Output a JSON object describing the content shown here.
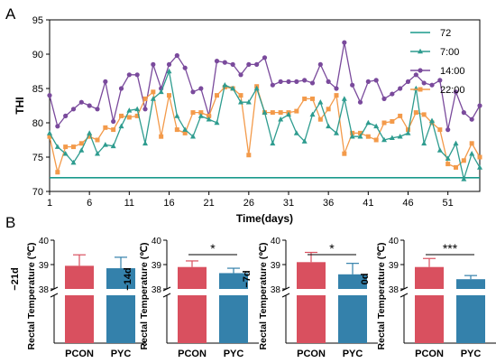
{
  "panel_labels": [
    "A",
    "B"
  ],
  "colors": {
    "line72": "#1a9a8c",
    "s7": "#2e9c8f",
    "s14": "#7a4a9c",
    "s22": "#f39a4a",
    "pcon": "#d9505f",
    "pyc": "#3481ab"
  },
  "chart_data": [
    {
      "type": "line",
      "xlabel": "Time(days)",
      "ylabel": "THI",
      "xlim": [
        1,
        55
      ],
      "ylim": [
        70,
        95
      ],
      "xticks": [
        1,
        6,
        11,
        16,
        21,
        26,
        31,
        36,
        41,
        46,
        51
      ],
      "yticks": [
        70,
        75,
        80,
        85,
        90,
        95
      ],
      "grid": false,
      "legend_position": "top-right",
      "x": [
        1,
        2,
        3,
        4,
        5,
        6,
        7,
        8,
        9,
        10,
        11,
        12,
        13,
        14,
        15,
        16,
        17,
        18,
        19,
        20,
        21,
        22,
        23,
        24,
        25,
        26,
        27,
        28,
        29,
        30,
        31,
        32,
        33,
        34,
        35,
        36,
        37,
        38,
        39,
        40,
        41,
        42,
        43,
        44,
        45,
        46,
        47,
        48,
        49,
        50,
        51,
        52,
        53,
        54,
        55
      ],
      "series": [
        {
          "name": "72",
          "marker": "none",
          "values": [
            72,
            72,
            72,
            72,
            72,
            72,
            72,
            72,
            72,
            72,
            72,
            72,
            72,
            72,
            72,
            72,
            72,
            72,
            72,
            72,
            72,
            72,
            72,
            72,
            72,
            72,
            72,
            72,
            72,
            72,
            72,
            72,
            72,
            72,
            72,
            72,
            72,
            72,
            72,
            72,
            72,
            72,
            72,
            72,
            72,
            72,
            72,
            72,
            72,
            72,
            72,
            72,
            72,
            72,
            72
          ]
        },
        {
          "name": "7:00",
          "marker": "triangle",
          "values": [
            78.5,
            76.5,
            75.5,
            74.2,
            76.0,
            78.5,
            75.5,
            76.8,
            76.6,
            79.5,
            81.8,
            82.0,
            77.0,
            83.5,
            84.5,
            87.5,
            81.0,
            79.0,
            78.0,
            81.0,
            80.5,
            80.0,
            85.5,
            85.0,
            83.0,
            83.0,
            85.0,
            81.5,
            77.0,
            80.5,
            81.2,
            78.5,
            77.3,
            81.2,
            83.0,
            79.5,
            78.5,
            83.5,
            78.0,
            78.0,
            80.0,
            79.5,
            77.5,
            77.8,
            78.0,
            78.5,
            85.0,
            77.0,
            80.3,
            76.0,
            74.8,
            77.0,
            71.8,
            75.5,
            73.5
          ]
        },
        {
          "name": "14:00",
          "marker": "circle",
          "values": [
            84.0,
            79.5,
            81.0,
            82.0,
            83.0,
            82.5,
            82.0,
            86.0,
            80.2,
            85.0,
            87.0,
            87.0,
            82.0,
            88.5,
            85.0,
            88.5,
            89.8,
            88.0,
            84.5,
            85.0,
            81.0,
            89.0,
            88.8,
            88.5,
            87.0,
            88.5,
            88.5,
            89.5,
            85.5,
            86.0,
            86.0,
            86.0,
            86.2,
            85.8,
            88.5,
            86.0,
            85.0,
            91.7,
            85.5,
            83.0,
            86.0,
            86.2,
            83.5,
            84.2,
            85.0,
            86.0,
            87.0,
            85.8,
            85.5,
            86.2,
            79.0,
            84.5,
            81.5,
            80.5,
            82.5
          ]
        },
        {
          "name": "22:00",
          "marker": "square",
          "values": [
            78.0,
            72.8,
            76.5,
            76.5,
            77.0,
            78.0,
            77.5,
            79.3,
            79.0,
            81.0,
            80.8,
            81.0,
            83.5,
            84.5,
            78.0,
            84.0,
            79.0,
            78.5,
            81.5,
            81.5,
            81.0,
            84.0,
            85.2,
            85.0,
            84.0,
            75.3,
            85.3,
            81.5,
            81.5,
            81.5,
            81.5,
            81.7,
            83.5,
            83.5,
            80.5,
            82.0,
            84.0,
            75.5,
            78.5,
            78.5,
            78.0,
            77.5,
            80.0,
            80.2,
            81.0,
            79.0,
            81.5,
            81.2,
            80.0,
            79.0,
            74.0,
            73.5,
            74.5,
            77.0,
            75.0
          ]
        }
      ]
    },
    {
      "type": "bar",
      "panel_title": "−21d",
      "ylabel": "Rectal Temperature (℃)",
      "categories": [
        "PCON",
        "PYC"
      ],
      "values": [
        38.95,
        38.85
      ],
      "errors": [
        0.45,
        0.45
      ],
      "ylim_shown": [
        38,
        40
      ],
      "yticks": [
        38,
        39,
        40
      ],
      "axis_break": true,
      "significance": ""
    },
    {
      "type": "bar",
      "panel_title": "−14d",
      "ylabel": "Rectal Temperature (℃)",
      "categories": [
        "PCON",
        "PYC"
      ],
      "values": [
        38.9,
        38.65
      ],
      "errors": [
        0.25,
        0.2
      ],
      "ylim_shown": [
        38,
        40
      ],
      "yticks": [
        38,
        39,
        40
      ],
      "axis_break": true,
      "significance": "*"
    },
    {
      "type": "bar",
      "panel_title": "−7d",
      "ylabel": "Rectal Temperature (℃)",
      "categories": [
        "PCON",
        "PYC"
      ],
      "values": [
        39.1,
        38.6
      ],
      "errors": [
        0.4,
        0.45
      ],
      "ylim_shown": [
        38,
        40
      ],
      "yticks": [
        38,
        39,
        40
      ],
      "axis_break": true,
      "significance": "*"
    },
    {
      "type": "bar",
      "panel_title": "0d",
      "ylabel": "Rectal Temperature (℃)",
      "categories": [
        "PCON",
        "PYC"
      ],
      "values": [
        38.9,
        38.4
      ],
      "errors": [
        0.35,
        0.15
      ],
      "ylim_shown": [
        38,
        40
      ],
      "yticks": [
        38,
        39,
        40
      ],
      "axis_break": true,
      "significance": "***"
    }
  ]
}
